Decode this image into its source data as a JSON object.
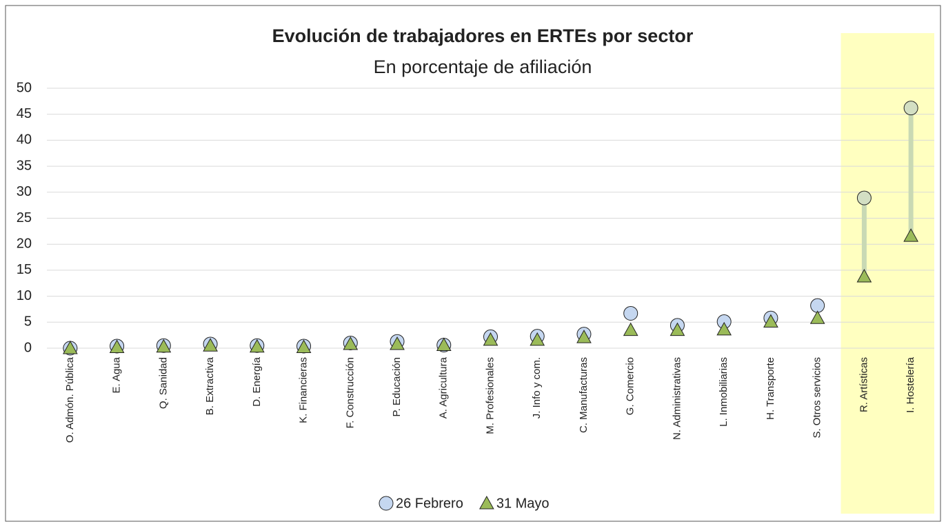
{
  "chart_data": {
    "type": "dot",
    "title": "Evolución de trabajadores en ERTEs por sector",
    "subtitle": "En porcentaje de afiliación",
    "categories": [
      "O. Admón. Pública",
      "E. Agua",
      "Q. Sanidad",
      "B. Extractiva",
      "D. Energía",
      "K. Financieras",
      "F. Construcción",
      "P. Educación",
      "A. Agricultura",
      "M. Profesionales",
      "J. Info y com.",
      "C. Manufacturas",
      "G. Comercio",
      "N. Administrativas",
      "L. Inmobiliarias",
      "H. Transporte",
      "S. Otros servicios",
      "R. Artísticas",
      "I. Hostelería"
    ],
    "series": [
      {
        "name": "26 Febrero",
        "color": "#c5d7f0",
        "marker": "circle",
        "values": [
          0,
          0.4,
          0.5,
          0.8,
          0.5,
          0.4,
          1.0,
          1.3,
          0.6,
          2.2,
          2.3,
          2.7,
          6.7,
          4.4,
          5.1,
          5.8,
          8.2,
          28.9,
          46.2
        ]
      },
      {
        "name": "31 Mayo",
        "color": "#9bbb59",
        "marker": "triangle",
        "values": [
          0,
          0.2,
          0.3,
          0.5,
          0.3,
          0.2,
          0.8,
          0.8,
          0.6,
          1.6,
          1.6,
          2.1,
          3.5,
          3.5,
          3.6,
          5.1,
          5.8,
          13.8,
          21.6
        ]
      }
    ],
    "ylim": [
      0,
      50
    ],
    "yticks": [
      0,
      5,
      10,
      15,
      20,
      25,
      30,
      35,
      40,
      45,
      50
    ],
    "grid": true,
    "highlight": [
      17,
      18
    ],
    "highlight_color": "#ffffc0",
    "highlight_marker_color": "#d3dfc3",
    "highlight_line_color": "#c9d9b4",
    "legend": "bottom"
  }
}
